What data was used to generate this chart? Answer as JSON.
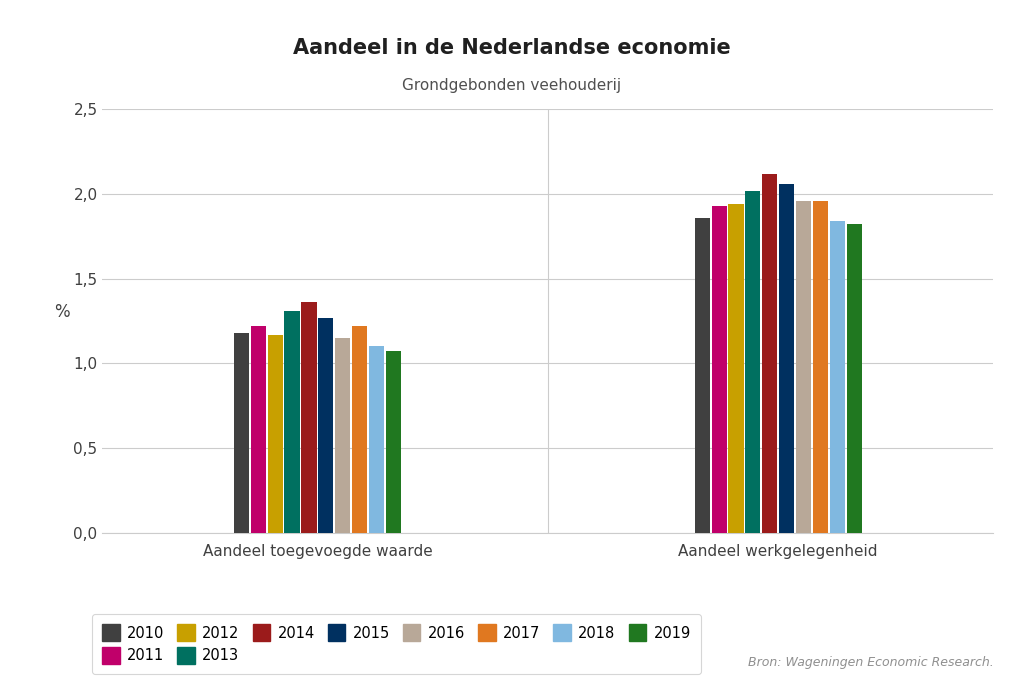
{
  "title": "Aandeel in de Nederlandse economie",
  "subtitle": "Grondgebonden veehouderij",
  "source": "Bron: Wageningen Economic Research.",
  "ylabel": "%",
  "ylim": [
    0,
    2.5
  ],
  "yticks": [
    0.0,
    0.5,
    1.0,
    1.5,
    2.0,
    2.5
  ],
  "ytick_labels": [
    "0,0",
    "0,5",
    "1,0",
    "1,5",
    "2,0",
    "2,5"
  ],
  "categories": [
    "Aandeel toegevoegde waarde",
    "Aandeel werkgelegenheid"
  ],
  "years": [
    "2010",
    "2011",
    "2012",
    "2013",
    "2014",
    "2015",
    "2016",
    "2017",
    "2018",
    "2019"
  ],
  "colors": [
    "#404040",
    "#c0006a",
    "#c8a000",
    "#007060",
    "#9b1b1b",
    "#003060",
    "#b8a898",
    "#e07820",
    "#80b8e0",
    "#207820"
  ],
  "values": {
    "Aandeel toegevoegde waarde": [
      1.18,
      1.22,
      1.17,
      1.31,
      1.36,
      1.27,
      1.15,
      1.22,
      1.1,
      1.07
    ],
    "Aandeel werkgelegenheid": [
      1.86,
      1.93,
      1.94,
      2.02,
      2.12,
      2.06,
      1.96,
      1.96,
      1.84,
      1.82
    ]
  },
  "background_color": "#ffffff",
  "grid_color": "#cccccc",
  "title_fontsize": 15,
  "subtitle_fontsize": 11,
  "legend_fontsize": 10.5,
  "axis_label_fontsize": 11
}
